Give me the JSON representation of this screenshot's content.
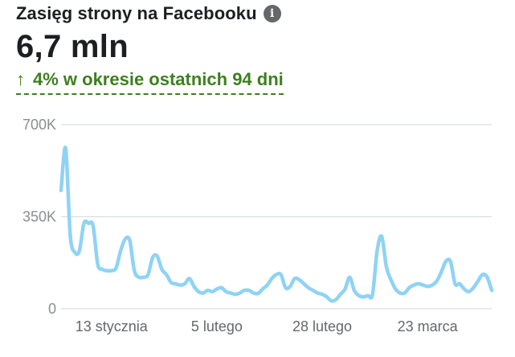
{
  "header": {
    "title": "Zasięg strony na Facebooku",
    "info_icon_glyph": "i",
    "value": "6,7 mln",
    "change_arrow": "↑",
    "change_text": "4% w okresie ostatnich 94 dni",
    "change_color": "#3e7f1f"
  },
  "chart_data": {
    "type": "line",
    "title": "",
    "xlabel": "",
    "ylabel": "",
    "ylim": [
      0,
      700000
    ],
    "y_ticks": [
      {
        "value": 0,
        "label": "0"
      },
      {
        "value": 350000,
        "label": "350K"
      },
      {
        "value": 700000,
        "label": "700K"
      }
    ],
    "x_ticks": [
      {
        "day": 11,
        "label": "13 stycznia"
      },
      {
        "day": 34,
        "label": "5 lutego"
      },
      {
        "day": 57,
        "label": "28 lutego"
      },
      {
        "day": 80,
        "label": "23 marca"
      }
    ],
    "grid": true,
    "line_color": "#8fd3f4",
    "series": [
      {
        "name": "",
        "values": [
          450000,
          610000,
          280000,
          215000,
          220000,
          325000,
          325000,
          315000,
          170000,
          150000,
          145000,
          145000,
          155000,
          220000,
          265000,
          260000,
          145000,
          120000,
          120000,
          130000,
          195000,
          200000,
          150000,
          130000,
          100000,
          95000,
          90000,
          95000,
          115000,
          85000,
          65000,
          60000,
          70000,
          65000,
          75000,
          80000,
          65000,
          60000,
          55000,
          60000,
          70000,
          70000,
          60000,
          58000,
          75000,
          90000,
          115000,
          130000,
          130000,
          80000,
          85000,
          115000,
          110000,
          95000,
          80000,
          70000,
          60000,
          55000,
          45000,
          30000,
          35000,
          55000,
          75000,
          120000,
          70000,
          50000,
          45000,
          50000,
          55000,
          220000,
          275000,
          160000,
          110000,
          75000,
          60000,
          60000,
          80000,
          90000,
          95000,
          90000,
          85000,
          90000,
          105000,
          140000,
          180000,
          180000,
          95000,
          95000,
          75000,
          65000,
          80000,
          105000,
          130000,
          120000,
          70000
        ]
      }
    ]
  }
}
